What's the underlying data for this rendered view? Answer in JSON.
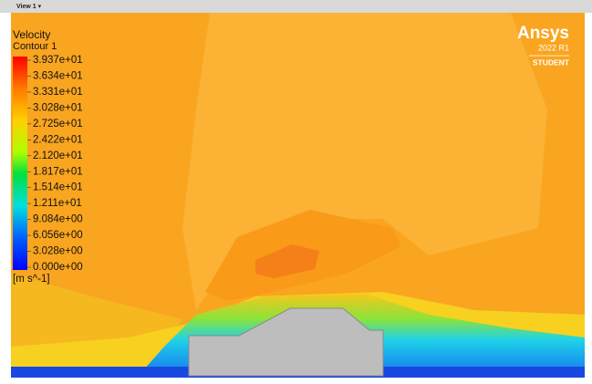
{
  "toolbar": {
    "view_tab": "View 1 ▾"
  },
  "legend": {
    "title": "Velocity",
    "subtitle": "Contour 1",
    "labels": [
      "3.937e+01",
      "3.634e+01",
      "3.331e+01",
      "3.028e+01",
      "2.725e+01",
      "2.422e+01",
      "2.120e+01",
      "1.817e+01",
      "1.514e+01",
      "1.211e+01",
      "9.084e+00",
      "6.056e+00",
      "3.028e+00",
      "0.000e+00"
    ],
    "unit": "[m s^-1]"
  },
  "logo": {
    "brand": "Ansys",
    "version": "2022 R1",
    "edition": "STUDENT"
  }
}
